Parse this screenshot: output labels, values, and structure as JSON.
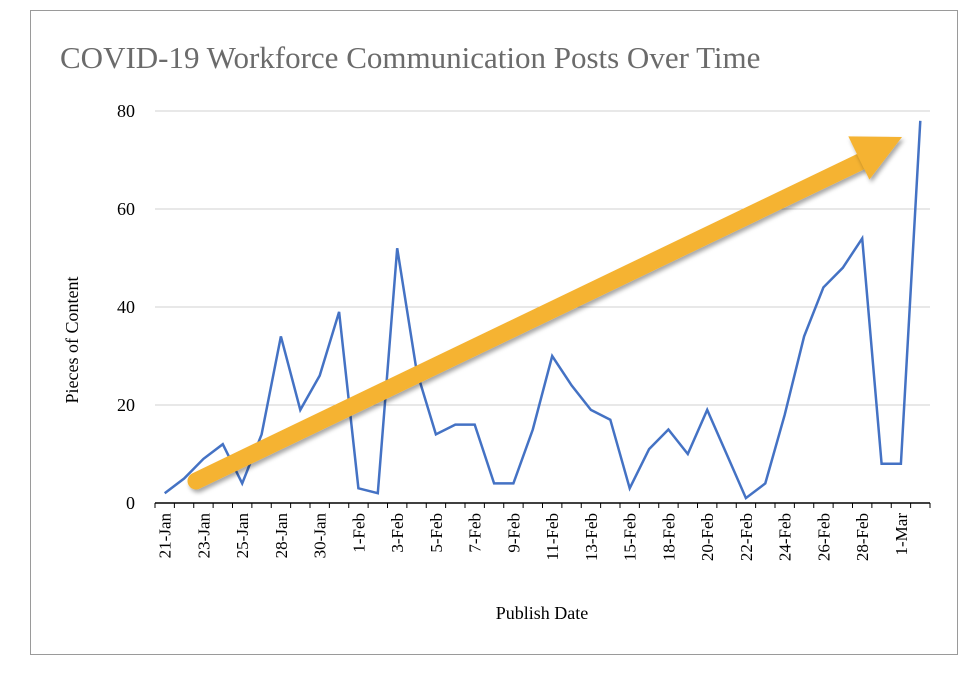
{
  "chart_data": {
    "type": "line",
    "title": "COVID-19 Workforce Communication Posts Over Time",
    "xlabel": "Publish Date",
    "ylabel": "Pieces of Content",
    "ylim": [
      0,
      80
    ],
    "yticks": [
      0,
      20,
      40,
      60,
      80
    ],
    "grid": true,
    "legend": "none",
    "line_color": "#4472c4",
    "arrow_color": "#f5b330",
    "x_tick_labels": [
      "21-Jan",
      "23-Jan",
      "25-Jan",
      "28-Jan",
      "30-Jan",
      "1-Feb",
      "3-Feb",
      "5-Feb",
      "7-Feb",
      "9-Feb",
      "11-Feb",
      "13-Feb",
      "15-Feb",
      "18-Feb",
      "20-Feb",
      "22-Feb",
      "24-Feb",
      "26-Feb",
      "28-Feb",
      "1-Mar"
    ],
    "series": [
      {
        "values": [
          2,
          5,
          9,
          12,
          4,
          14,
          34,
          19,
          26,
          39,
          3,
          2,
          52,
          27,
          14,
          16,
          16,
          4,
          4,
          15,
          30,
          24,
          19,
          17,
          3,
          11,
          15,
          10,
          19,
          10,
          1,
          4,
          18,
          34,
          44,
          48,
          54,
          8,
          8,
          78
        ]
      }
    ],
    "annotation": "upward trend arrow"
  }
}
